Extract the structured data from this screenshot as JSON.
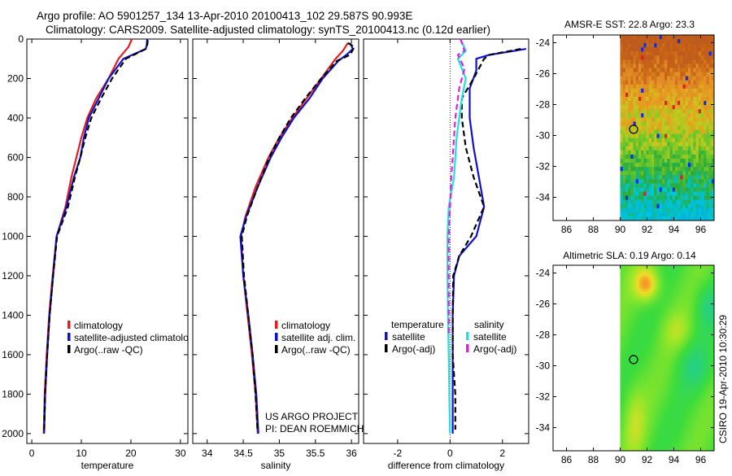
{
  "header": {
    "line1": "Argo profile: AO 5901257_134 13-Apr-2010 20100413_102 29.587S 90.993E",
    "line2": "Climatology: CARS2009. Satellite-adjusted climatology: synTS_20100413.nc (0.12d earlier)"
  },
  "colors": {
    "climatology": "#e02020",
    "satellite": "#1010d0",
    "argo": "#000000",
    "temp_satellite": "#1010d0",
    "sal_satellite": "#20e0e0",
    "sal_argo": "#e020e0"
  },
  "chart_data": [
    {
      "type": "line",
      "id": "temperature-profile",
      "xlabel": "temperature",
      "ylabel": "",
      "xlim": [
        -1,
        31.5
      ],
      "ylim": [
        2050,
        0
      ],
      "xticks": [
        0,
        10,
        20,
        30
      ],
      "yticks": [
        0,
        200,
        400,
        600,
        800,
        1000,
        1200,
        1400,
        1600,
        1800,
        2000
      ],
      "legend": [
        "climatology",
        "satellite-adjusted climatology",
        "Argo(..raw -QC)"
      ],
      "series": [
        {
          "name": "climatology",
          "color": "#e02020",
          "style": "solid",
          "x": [
            20.2,
            19.5,
            17.5,
            15.5,
            13.0,
            11.2,
            10.0,
            9.0,
            8.0,
            6.8,
            5.0,
            4.2,
            3.5,
            3.0,
            2.6,
            2.4
          ],
          "y": [
            0,
            40,
            100,
            200,
            300,
            400,
            500,
            600,
            700,
            850,
            1000,
            1200,
            1400,
            1600,
            1800,
            2000
          ]
        },
        {
          "name": "satellite-adjusted climatology",
          "color": "#1010d0",
          "style": "solid",
          "x": [
            23.3,
            23.2,
            23.0,
            18.5,
            15.5,
            13.5,
            11.5,
            10.5,
            9.8,
            8.5,
            7.0,
            5.0,
            4.3,
            3.6,
            3.1,
            2.7,
            2.5
          ],
          "y": [
            0,
            30,
            50,
            100,
            200,
            300,
            400,
            500,
            600,
            700,
            850,
            1000,
            1200,
            1400,
            1600,
            1800,
            2000
          ]
        },
        {
          "name": "Argo(..raw -QC)",
          "color": "#000000",
          "style": "dash",
          "x": [
            23.4,
            23.3,
            23.0,
            19.0,
            16.2,
            14.0,
            12.0,
            10.8,
            9.8,
            8.7,
            7.3,
            5.1,
            4.3,
            3.6,
            3.1,
            2.7,
            2.5
          ],
          "y": [
            5,
            30,
            50,
            100,
            200,
            300,
            400,
            500,
            600,
            700,
            850,
            1000,
            1200,
            1400,
            1600,
            1800,
            1980
          ]
        }
      ]
    },
    {
      "type": "line",
      "id": "salinity-profile",
      "xlabel": "salinity",
      "ylabel": "",
      "xlim": [
        33.8,
        36.1
      ],
      "ylim": [
        2050,
        0
      ],
      "xticks": [
        34,
        34.5,
        35,
        35.5,
        36
      ],
      "xticklabels": [
        "34",
        "34.5",
        "35",
        "35.5",
        "36"
      ],
      "legend": [
        "climatology",
        "satellite adj. clim.",
        "Argo(..raw -QC)"
      ],
      "series": [
        {
          "name": "climatology",
          "color": "#e02020",
          "style": "solid",
          "x": [
            35.95,
            35.88,
            35.78,
            35.58,
            35.38,
            35.18,
            35.0,
            34.85,
            34.67,
            34.53,
            34.47,
            34.5,
            34.56,
            34.62,
            34.67,
            34.7
          ],
          "y": [
            20,
            60,
            100,
            200,
            300,
            400,
            500,
            600,
            750,
            900,
            1000,
            1200,
            1400,
            1600,
            1800,
            2000
          ]
        },
        {
          "name": "satellite adj. clim.",
          "color": "#1010d0",
          "style": "solid",
          "x": [
            35.98,
            36.02,
            35.93,
            35.82,
            35.6,
            35.42,
            35.2,
            35.03,
            34.88,
            34.7,
            34.54,
            34.46,
            34.5,
            34.57,
            34.63,
            34.68,
            34.71
          ],
          "y": [
            20,
            50,
            80,
            110,
            200,
            300,
            400,
            500,
            600,
            750,
            900,
            1000,
            1200,
            1400,
            1600,
            1800,
            2000
          ]
        },
        {
          "name": "Argo(..raw -QC)",
          "color": "#000000",
          "style": "dash",
          "x": [
            35.95,
            36.04,
            35.98,
            35.8,
            35.58,
            35.36,
            35.16,
            35.0,
            34.86,
            34.7,
            34.55,
            34.48,
            34.51,
            34.57,
            34.63,
            34.67,
            34.7
          ],
          "y": [
            20,
            40,
            80,
            110,
            200,
            300,
            400,
            500,
            600,
            750,
            900,
            1000,
            1200,
            1400,
            1600,
            1800,
            1990
          ]
        }
      ]
    },
    {
      "type": "line",
      "id": "difference-profile",
      "xlabel": "difference from climatology",
      "ylabel": "",
      "xlim": [
        -3.3,
        3.0
      ],
      "ylim": [
        2050,
        0
      ],
      "xticks": [
        -2,
        0,
        2
      ],
      "legend_groups": [
        "temperature",
        "salinity"
      ],
      "legend": [
        "satellite",
        "Argo(-adj)",
        "satellite",
        "Argo(-adj)"
      ],
      "series": [
        {
          "name": "temperature satellite",
          "color": "#1010d0",
          "style": "solid",
          "x": [
            2.9,
            1.5,
            1.0,
            1.0,
            0.75,
            0.75,
            0.9,
            1.1,
            1.3,
            1.0,
            0.35,
            0.15,
            0.1,
            0.1,
            0.1,
            0.1
          ],
          "y": [
            50,
            80,
            100,
            160,
            250,
            400,
            550,
            700,
            850,
            1000,
            1100,
            1200,
            1400,
            1600,
            1800,
            2000
          ]
        },
        {
          "name": "temperature Argo(-adj)",
          "color": "#000000",
          "style": "dash",
          "x": [
            2.7,
            1.5,
            1.3,
            0.9,
            0.45,
            0.45,
            0.6,
            0.9,
            1.3,
            0.8,
            0.35,
            0.12,
            0.1,
            0.1,
            0.2,
            0.2
          ],
          "y": [
            50,
            80,
            100,
            200,
            300,
            400,
            550,
            700,
            850,
            1000,
            1100,
            1200,
            1400,
            1600,
            1800,
            1980
          ]
        },
        {
          "name": "salinity satellite",
          "color": "#20e0e0",
          "style": "solid",
          "x": [
            0.4,
            0.6,
            0.3,
            0.6,
            0.45,
            0.35,
            0.25,
            0.2,
            0.15,
            -0.05,
            -0.1,
            -0.1,
            -0.08,
            -0.05,
            -0.03,
            0.0
          ],
          "y": [
            0,
            60,
            100,
            200,
            300,
            400,
            500,
            600,
            700,
            850,
            1000,
            1200,
            1400,
            1600,
            1800,
            2000
          ]
        },
        {
          "name": "salinity Argo(-adj)",
          "color": "#e020e0",
          "style": "dash",
          "x": [
            0.4,
            0.55,
            0.3,
            0.55,
            0.35,
            0.2,
            0.15,
            0.1,
            0.05,
            0.0,
            -0.05,
            -0.05,
            -0.05,
            -0.05
          ],
          "y": [
            0,
            60,
            80,
            150,
            250,
            400,
            500,
            600,
            700,
            850,
            1000,
            1200,
            1400,
            1500
          ]
        }
      ]
    },
    {
      "type": "heatmap",
      "id": "sst-map",
      "title": "AMSR-E SST: 22.8 Argo: 23.3",
      "xlim": [
        85,
        97
      ],
      "ylim": [
        -35.5,
        -23.5
      ],
      "xticks": [
        86,
        88,
        90,
        92,
        94,
        96
      ],
      "yticks": [
        -24,
        -26,
        -28,
        -30,
        -32,
        -34
      ],
      "data_xrange": [
        90,
        97
      ],
      "marker": {
        "lon": 91.0,
        "lat": -29.6
      }
    },
    {
      "type": "heatmap",
      "id": "sla-map",
      "title": "Altimetric SLA: 0.19 Argo: 0.14",
      "xlim": [
        85,
        97
      ],
      "ylim": [
        -35.5,
        -23.5
      ],
      "xticks": [
        86,
        88,
        90,
        92,
        94,
        96
      ],
      "yticks": [
        -24,
        -26,
        -28,
        -30,
        -32,
        -34
      ],
      "data_xrange": [
        90,
        97
      ],
      "marker": {
        "lon": 91.0,
        "lat": -29.6
      }
    }
  ],
  "credits": {
    "project": "US ARGO PROJECT",
    "pi": "PI: DEAN ROEMMICH",
    "side_text": "CSIRO 19-Apr-2010 10:30:29"
  }
}
